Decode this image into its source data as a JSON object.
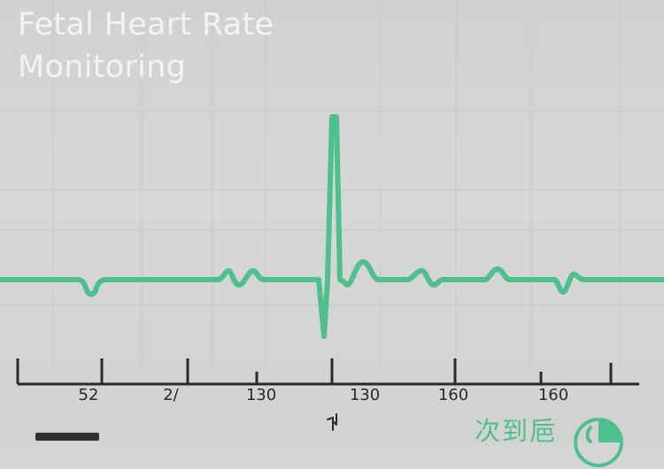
{
  "title": {
    "line1": "Fetal Heart Rate",
    "line2": "Monitoring"
  },
  "axis": {
    "tick_labels": [
      "52",
      "2/",
      "130",
      "130",
      "160",
      "160"
    ]
  },
  "footer": {
    "status_text": "次到巵"
  },
  "colors": {
    "background": "#d3d4d4",
    "trace": "#4fbf8e",
    "title": "#f2f3f3",
    "axis": "#2a2a2a"
  },
  "icons": {
    "cursor": "cursor-icon",
    "status": "status-circle-icon"
  }
}
